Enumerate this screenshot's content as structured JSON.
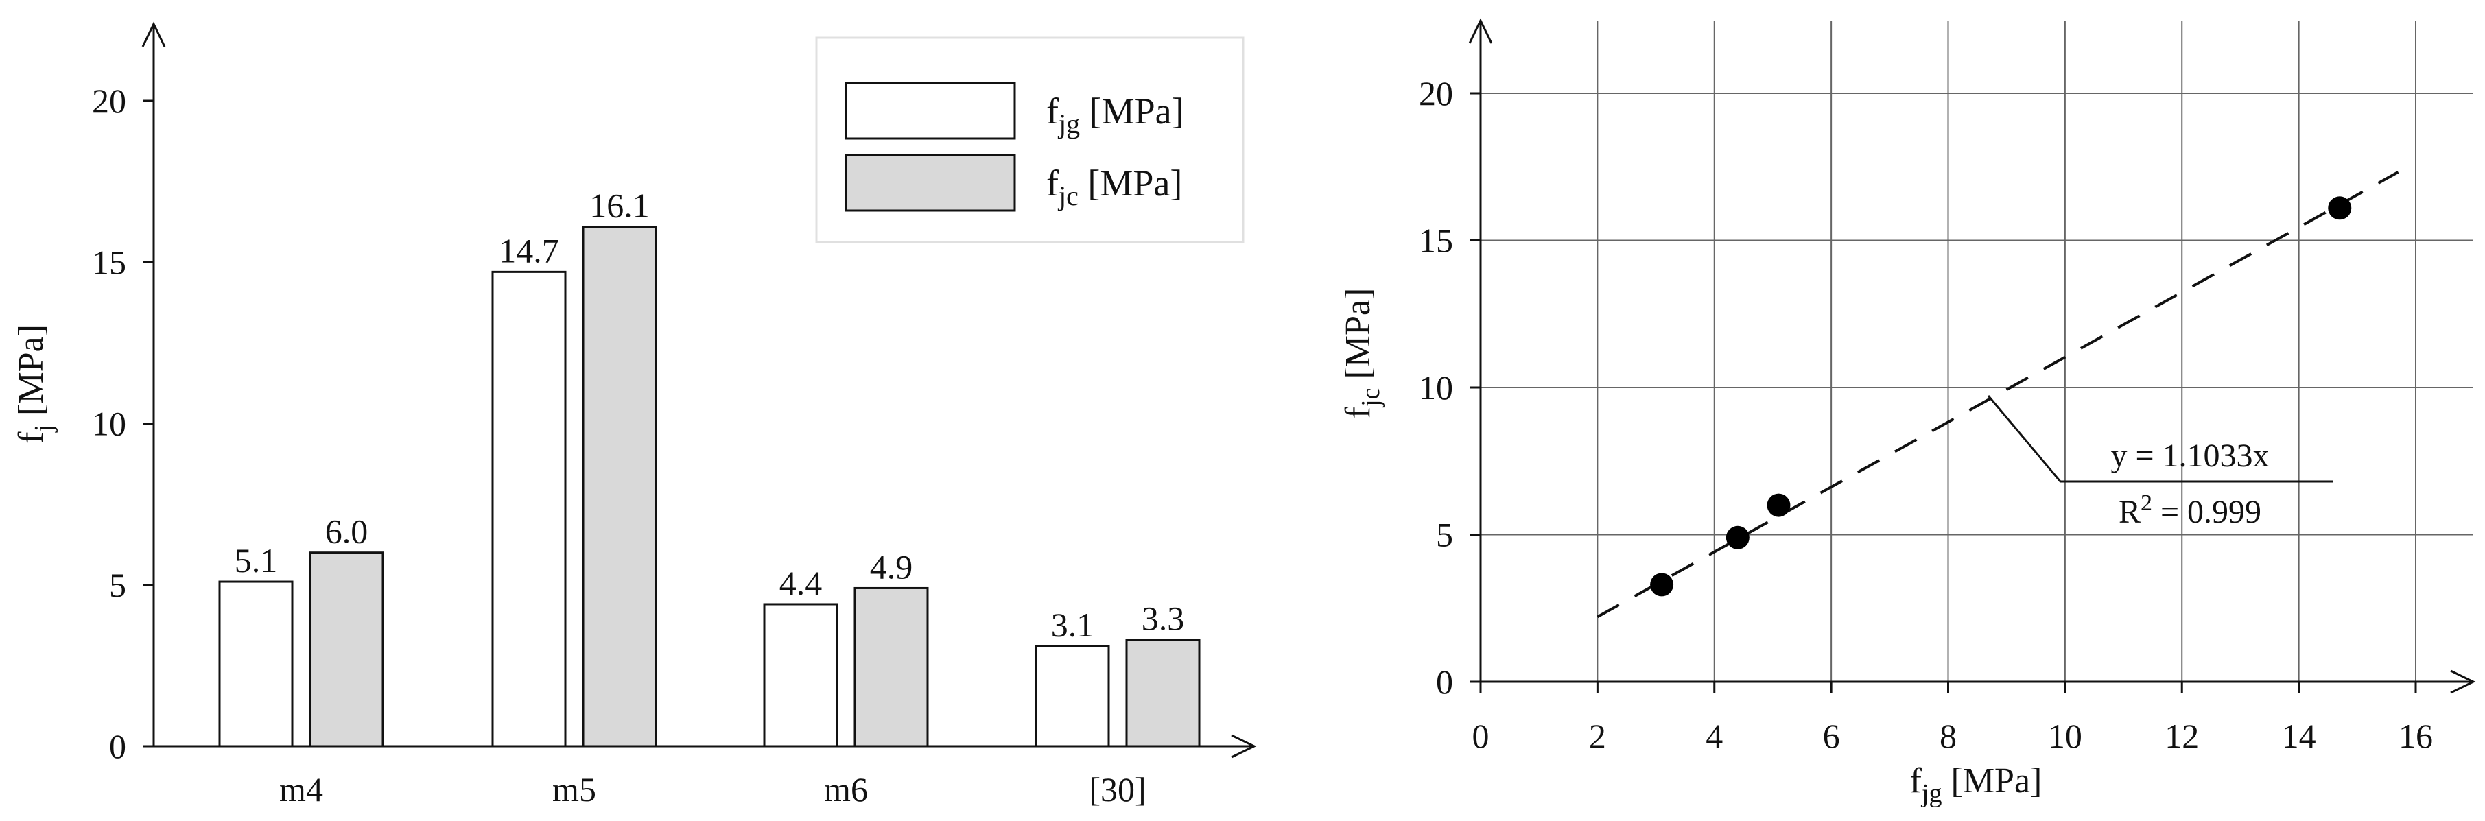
{
  "chart_data": [
    {
      "type": "bar",
      "categories": [
        "m4",
        "m5",
        "m6",
        "[30]"
      ],
      "series": [
        {
          "name": "fjg [MPa]",
          "name_main": "f",
          "name_sub": "jg",
          "name_unit": " [MPa]",
          "color": "#ffffff",
          "values": [
            5.1,
            14.7,
            4.4,
            3.1
          ],
          "labels": [
            "5.1",
            "14.7",
            "4.4",
            "3.1"
          ]
        },
        {
          "name": "fjc [MPa]",
          "name_main": "f",
          "name_sub": "jc",
          "name_unit": " [MPa]",
          "color": "#d9d9d9",
          "values": [
            6.0,
            16.1,
            4.9,
            3.3
          ],
          "labels": [
            "6.0",
            "16.1",
            "4.9",
            "3.3"
          ]
        }
      ],
      "ylabel": "fj [MPa]",
      "ylabel_main": "f",
      "ylabel_sub": "j",
      "ylabel_unit": " [MPa]",
      "xlabel": "",
      "ylim": [
        0,
        22
      ],
      "yticks": [
        0,
        5,
        10,
        15,
        20
      ],
      "ytick_labels": [
        "0",
        "5",
        "10",
        "15",
        "20"
      ],
      "grid": false,
      "legend_position": "top-right"
    },
    {
      "type": "scatter",
      "points": [
        {
          "x": 3.1,
          "y": 3.3
        },
        {
          "x": 4.4,
          "y": 4.9
        },
        {
          "x": 5.1,
          "y": 6.0
        },
        {
          "x": 14.7,
          "y": 16.1
        }
      ],
      "trendline": {
        "slope": 1.1033,
        "x_from": 2.0,
        "x_to": 15.7,
        "style": "dashed"
      },
      "annotation": {
        "equation": "y = 1.1033x",
        "r2_main": "R",
        "r2_sup": "2",
        "r2_rest": " = 0.999"
      },
      "xlabel": "fjg [MPa]",
      "xlabel_main": "f",
      "xlabel_sub": "jg",
      "xlabel_unit": " [MPa]",
      "ylabel": "fjc [MPa]",
      "ylabel_main": "f",
      "ylabel_sub": "jc",
      "ylabel_unit": " [MPa]",
      "xlim": [
        0,
        17
      ],
      "ylim": [
        0,
        22
      ],
      "xticks": [
        0,
        2,
        4,
        6,
        8,
        10,
        12,
        14,
        16
      ],
      "xtick_labels": [
        "0",
        "2",
        "4",
        "6",
        "8",
        "10",
        "12",
        "14",
        "16"
      ],
      "yticks": [
        0,
        5,
        10,
        15,
        20
      ],
      "ytick_labels": [
        "0",
        "5",
        "10",
        "15",
        "20"
      ],
      "grid": true
    }
  ]
}
